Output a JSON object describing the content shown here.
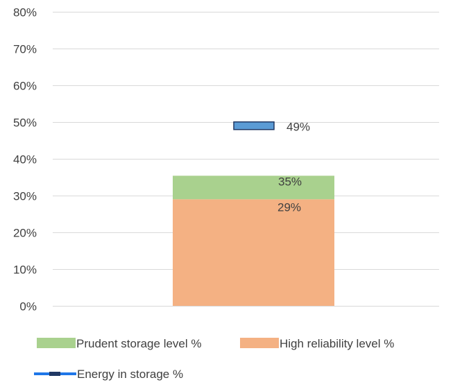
{
  "chart_data": {
    "type": "bar",
    "stacked": true,
    "ylim": [
      0,
      0.8
    ],
    "y_ticks": [
      0,
      0.1,
      0.2,
      0.3,
      0.4,
      0.5,
      0.6,
      0.7,
      0.8
    ],
    "y_tick_labels": [
      "0%",
      "10%",
      "20%",
      "30%",
      "40%",
      "50%",
      "60%",
      "70%",
      "80%"
    ],
    "grid": true,
    "legend_position": "bottom",
    "series": [
      {
        "name": "High reliability level %",
        "type": "bar",
        "value": 0.29,
        "label": "29%",
        "color": "#F4B183"
      },
      {
        "name": "Prudent storage level %",
        "type": "bar",
        "value": 0.064,
        "cumulative": 0.354,
        "label": "35%",
        "color": "#A9D18E"
      },
      {
        "name": "Energy in storage %",
        "type": "marker",
        "value": 0.49,
        "label": "49%",
        "color": "#5B9BD5",
        "border_color": "#203864"
      }
    ],
    "legend": [
      {
        "name": "Prudent storage level %",
        "kind": "box",
        "color": "#A9D18E"
      },
      {
        "name": "High reliability level %",
        "kind": "box",
        "color": "#F4B183"
      },
      {
        "name": "Energy in storage %",
        "kind": "line-marker",
        "color": "#1F77E8",
        "marker_color": "#203864"
      }
    ]
  }
}
